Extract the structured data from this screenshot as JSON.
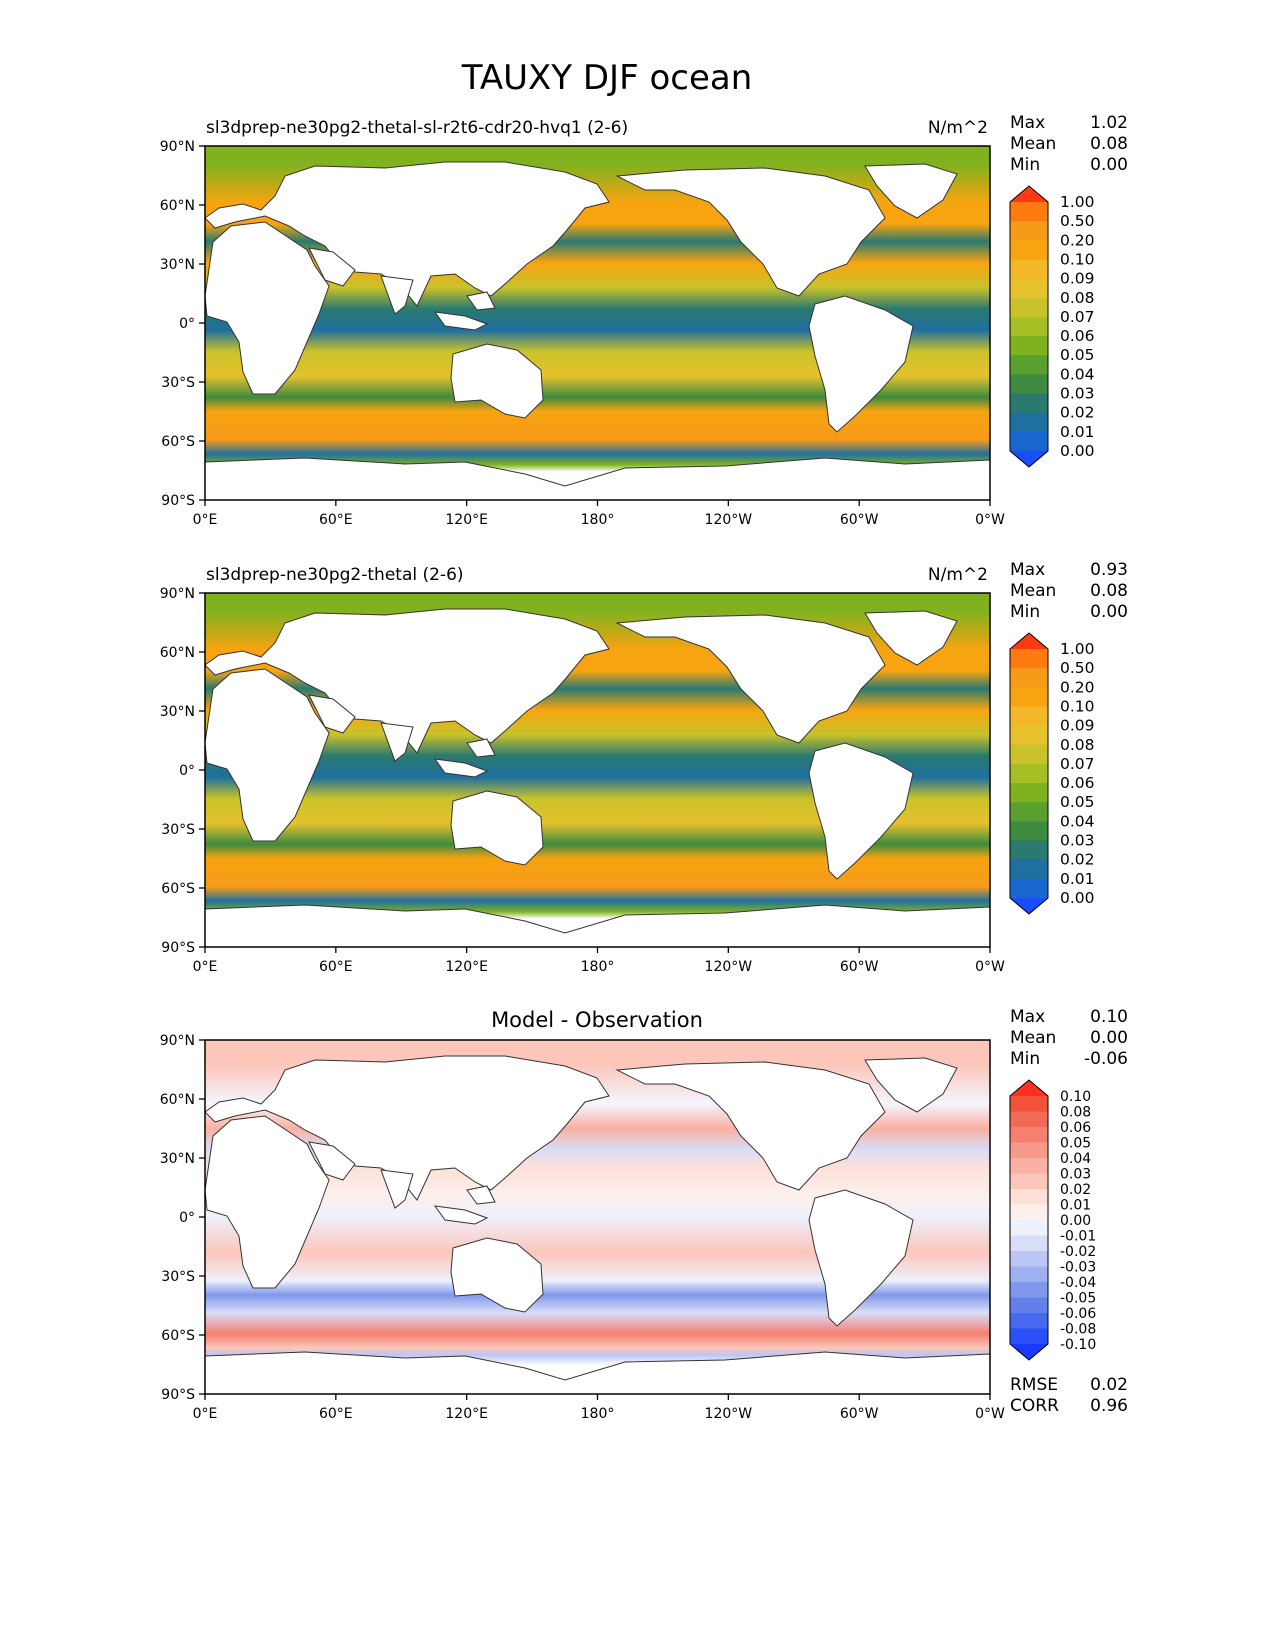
{
  "title": "TAUXY DJF ocean",
  "lat_ticks": [
    "90°N",
    "60°N",
    "30°N",
    "0°",
    "30°S",
    "60°S",
    "90°S"
  ],
  "lon_ticks": [
    "0°E",
    "60°E",
    "120°E",
    "180°",
    "120°W",
    "60°W",
    "0°W"
  ],
  "colors": {
    "frame": "#000000",
    "land": "#ffffff",
    "ocean_base": "#1f78b4",
    "diff_neutral": "#f5f5ff"
  },
  "chart_data": [
    {
      "type": "heatmap",
      "name": "test",
      "title_left": "sl3dprep-ne30pg2-thetal-sl-r2t6-cdr20-hvq1 (2-6)",
      "units": "N/m^2",
      "stats": {
        "max_label": "Max",
        "max": "1.02",
        "mean_label": "Mean",
        "mean": "0.08",
        "min_label": "Min",
        "min": "0.00"
      },
      "xlim": [
        0,
        360
      ],
      "ylim": [
        -90,
        90
      ],
      "colorbar": {
        "levels": [
          "1.00",
          "0.50",
          "0.20",
          "0.10",
          "0.09",
          "0.08",
          "0.07",
          "0.06",
          "0.05",
          "0.04",
          "0.03",
          "0.02",
          "0.01",
          "0.00"
        ],
        "colors": [
          "#ff3a10",
          "#ff7a10",
          "#f79a1a",
          "#f7a410",
          "#f2b829",
          "#e6c22d",
          "#c9c22a",
          "#a5bf25",
          "#7fb21f",
          "#5aa030",
          "#3e8a3e",
          "#2a7a70",
          "#1f6fa0",
          "#1a66d0",
          "#1a4dff"
        ]
      }
    },
    {
      "type": "heatmap",
      "name": "reference",
      "title_left": "sl3dprep-ne30pg2-thetal (2-6)",
      "units": "N/m^2",
      "stats": {
        "max_label": "Max",
        "max": "0.93",
        "mean_label": "Mean",
        "mean": "0.08",
        "min_label": "Min",
        "min": "0.00"
      },
      "xlim": [
        0,
        360
      ],
      "ylim": [
        -90,
        90
      ],
      "colorbar": {
        "levels": [
          "1.00",
          "0.50",
          "0.20",
          "0.10",
          "0.09",
          "0.08",
          "0.07",
          "0.06",
          "0.05",
          "0.04",
          "0.03",
          "0.02",
          "0.01",
          "0.00"
        ],
        "colors": [
          "#ff3a10",
          "#ff7a10",
          "#f79a1a",
          "#f7a410",
          "#f2b829",
          "#e6c22d",
          "#c9c22a",
          "#a5bf25",
          "#7fb21f",
          "#5aa030",
          "#3e8a3e",
          "#2a7a70",
          "#1f6fa0",
          "#1a66d0",
          "#1a4dff"
        ]
      }
    },
    {
      "type": "heatmap",
      "name": "difference",
      "title_center": "Model - Observation",
      "stats": {
        "max_label": "Max",
        "max": "0.10",
        "mean_label": "Mean",
        "mean": "0.00",
        "min_label": "Min",
        "min": "-0.06"
      },
      "metrics": {
        "rmse_label": "RMSE",
        "rmse": "0.02",
        "corr_label": "CORR",
        "corr": "0.96"
      },
      "xlim": [
        0,
        360
      ],
      "ylim": [
        -90,
        90
      ],
      "colorbar": {
        "levels": [
          "0.10",
          "0.08",
          "0.06",
          "0.05",
          "0.04",
          "0.03",
          "0.02",
          "0.01",
          "0.00",
          "-0.01",
          "-0.02",
          "-0.03",
          "-0.04",
          "-0.05",
          "-0.06",
          "-0.08",
          "-0.10"
        ],
        "colors": [
          "#ff3020",
          "#f5503a",
          "#f06a55",
          "#f58070",
          "#f89a8a",
          "#fab0a2",
          "#fcc6bb",
          "#fde0d8",
          "#fdf0ec",
          "#eef0fc",
          "#d8ddf8",
          "#bcc6f4",
          "#9fb0f0",
          "#8098ec",
          "#6280ea",
          "#4868f0",
          "#2a50f8",
          "#1a3aff"
        ]
      }
    }
  ]
}
